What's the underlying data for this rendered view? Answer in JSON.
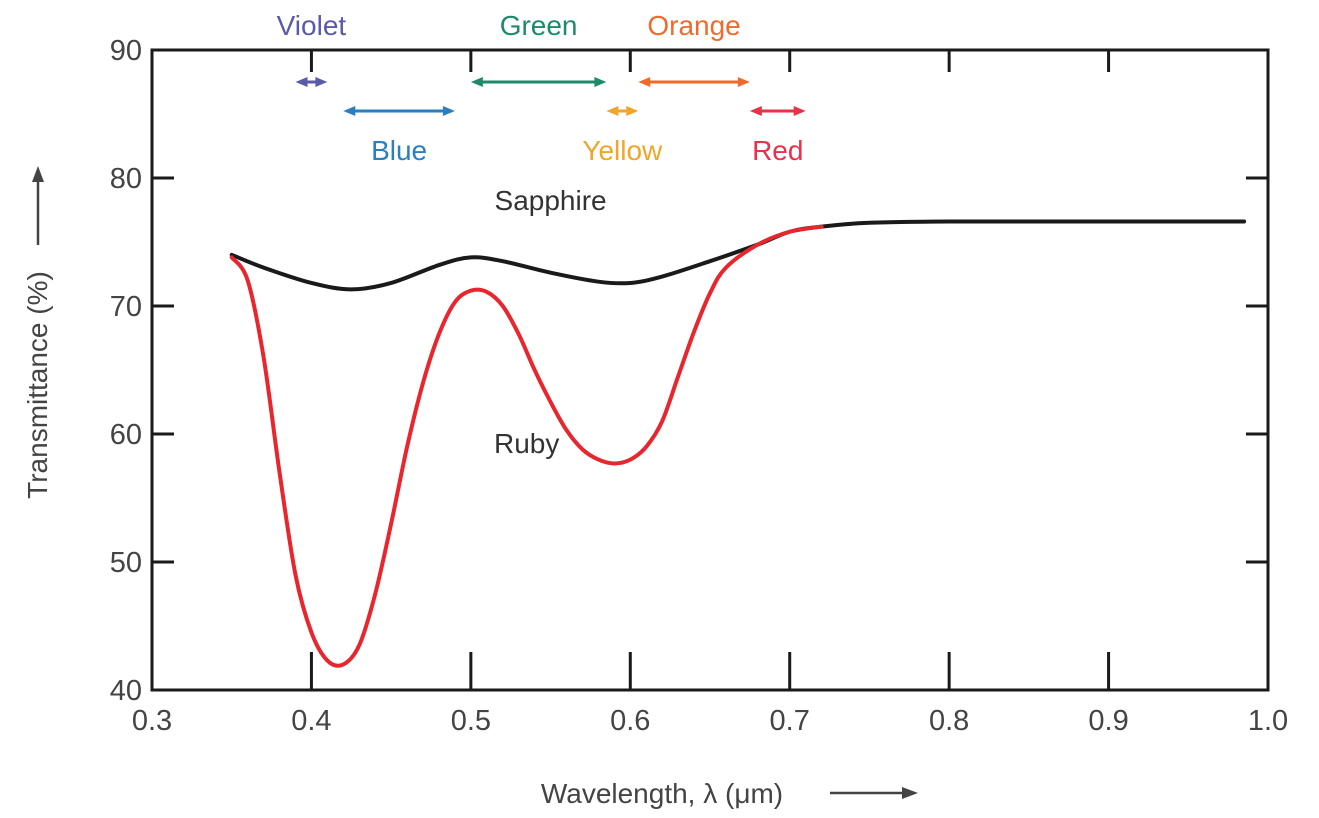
{
  "chart_data": {
    "type": "line",
    "title": "",
    "xlabel": "Wavelength, λ (μm)",
    "ylabel": "Transmittance (%)",
    "xlim": [
      0.3,
      1.0
    ],
    "ylim": [
      40,
      90
    ],
    "x_ticks": [
      0.3,
      0.4,
      0.5,
      0.6,
      0.7,
      0.8,
      0.9,
      1.0
    ],
    "x_tick_labels": [
      "0.3",
      "0.4",
      "0.5",
      "0.6",
      "0.7",
      "0.8",
      "0.9",
      "1.0"
    ],
    "y_ticks": [
      40,
      50,
      60,
      70,
      80,
      90
    ],
    "y_tick_labels": [
      "40",
      "50",
      "60",
      "70",
      "80",
      "90"
    ],
    "grid": false,
    "series": [
      {
        "name": "Sapphire",
        "color": "#1a1a1a",
        "label_at": [
          0.55,
          77.5
        ],
        "points": [
          [
            0.35,
            74
          ],
          [
            0.37,
            73
          ],
          [
            0.4,
            71.8
          ],
          [
            0.425,
            71.3
          ],
          [
            0.45,
            71.8
          ],
          [
            0.48,
            73.2
          ],
          [
            0.5,
            73.8
          ],
          [
            0.52,
            73.5
          ],
          [
            0.55,
            72.6
          ],
          [
            0.58,
            71.9
          ],
          [
            0.6,
            71.8
          ],
          [
            0.62,
            72.3
          ],
          [
            0.65,
            73.5
          ],
          [
            0.68,
            74.8
          ],
          [
            0.7,
            75.8
          ],
          [
            0.72,
            76.2
          ],
          [
            0.75,
            76.5
          ],
          [
            0.8,
            76.6
          ],
          [
            0.9,
            76.6
          ],
          [
            0.985,
            76.6
          ]
        ]
      },
      {
        "name": "Ruby",
        "color": "#e8262d",
        "label_at": [
          0.535,
          58.5
        ],
        "points": [
          [
            0.35,
            73.8
          ],
          [
            0.36,
            72
          ],
          [
            0.37,
            66
          ],
          [
            0.38,
            57
          ],
          [
            0.39,
            49
          ],
          [
            0.4,
            44.5
          ],
          [
            0.41,
            42.3
          ],
          [
            0.42,
            42
          ],
          [
            0.43,
            43.5
          ],
          [
            0.44,
            47.5
          ],
          [
            0.45,
            53
          ],
          [
            0.46,
            59
          ],
          [
            0.47,
            64
          ],
          [
            0.48,
            67.8
          ],
          [
            0.49,
            70.3
          ],
          [
            0.5,
            71.2
          ],
          [
            0.51,
            71.1
          ],
          [
            0.52,
            70
          ],
          [
            0.53,
            67.8
          ],
          [
            0.54,
            65
          ],
          [
            0.55,
            62.5
          ],
          [
            0.56,
            60.3
          ],
          [
            0.57,
            58.8
          ],
          [
            0.58,
            58
          ],
          [
            0.59,
            57.7
          ],
          [
            0.6,
            58
          ],
          [
            0.61,
            59
          ],
          [
            0.62,
            61
          ],
          [
            0.63,
            64.5
          ],
          [
            0.64,
            68
          ],
          [
            0.65,
            71
          ],
          [
            0.66,
            73
          ],
          [
            0.68,
            74.8
          ],
          [
            0.7,
            75.8
          ],
          [
            0.72,
            76.2
          ]
        ]
      }
    ],
    "color_bands": [
      {
        "name": "Violet",
        "color": "#5b5aa8",
        "range": [
          0.39,
          0.41
        ],
        "row": "upper",
        "label_pos": "above"
      },
      {
        "name": "Blue",
        "color": "#2b7fc1",
        "range": [
          0.42,
          0.49
        ],
        "row": "lower",
        "label_pos": "below"
      },
      {
        "name": "Green",
        "color": "#1f8a6a",
        "range": [
          0.5,
          0.585
        ],
        "row": "upper",
        "label_pos": "above"
      },
      {
        "name": "Yellow",
        "color": "#f0a628",
        "range": [
          0.585,
          0.605
        ],
        "row": "lower",
        "label_pos": "below"
      },
      {
        "name": "Orange",
        "color": "#ef6b2b",
        "range": [
          0.605,
          0.675
        ],
        "row": "upper",
        "label_pos": "above"
      },
      {
        "name": "Red",
        "color": "#e8324a",
        "range": [
          0.675,
          0.71
        ],
        "row": "lower",
        "label_pos": "below"
      }
    ]
  }
}
